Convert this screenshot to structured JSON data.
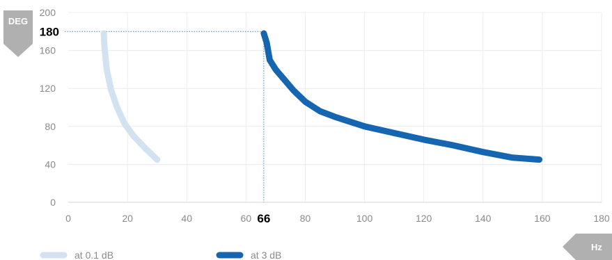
{
  "chart_data": {
    "type": "line",
    "y_unit": "DEG",
    "x_unit": "Hz",
    "xlim": [
      0,
      180
    ],
    "ylim": [
      0,
      200
    ],
    "x_ticks": [
      "0",
      "20",
      "40",
      "60",
      "80",
      "100",
      "120",
      "140",
      "160",
      "180"
    ],
    "y_ticks": [
      "0",
      "40",
      "80",
      "120",
      "160",
      "200"
    ],
    "grid": true,
    "legend_position": "bottom-left",
    "series": [
      {
        "name": "at 0.1 dB",
        "color": "#d3e2f0",
        "x": [
          12,
          12.2,
          13,
          14.5,
          16.5,
          19,
          22,
          26,
          30
        ],
        "y": [
          178,
          165,
          140,
          118,
          100,
          83,
          70,
          57,
          45
        ]
      },
      {
        "name": "at 3 dB",
        "color": "#1565b0",
        "x": [
          66,
          67,
          68,
          70,
          73,
          76,
          80,
          85,
          90,
          100,
          110,
          120,
          130,
          140,
          150,
          159
        ],
        "y": [
          178,
          168,
          150,
          140,
          129,
          118,
          106,
          96,
          90,
          80,
          73,
          66,
          60,
          53,
          47,
          45
        ]
      }
    ],
    "annotations": {
      "y_marker": {
        "value": 180,
        "label": "180"
      },
      "x_marker": {
        "value": 66,
        "label": "66"
      }
    }
  }
}
